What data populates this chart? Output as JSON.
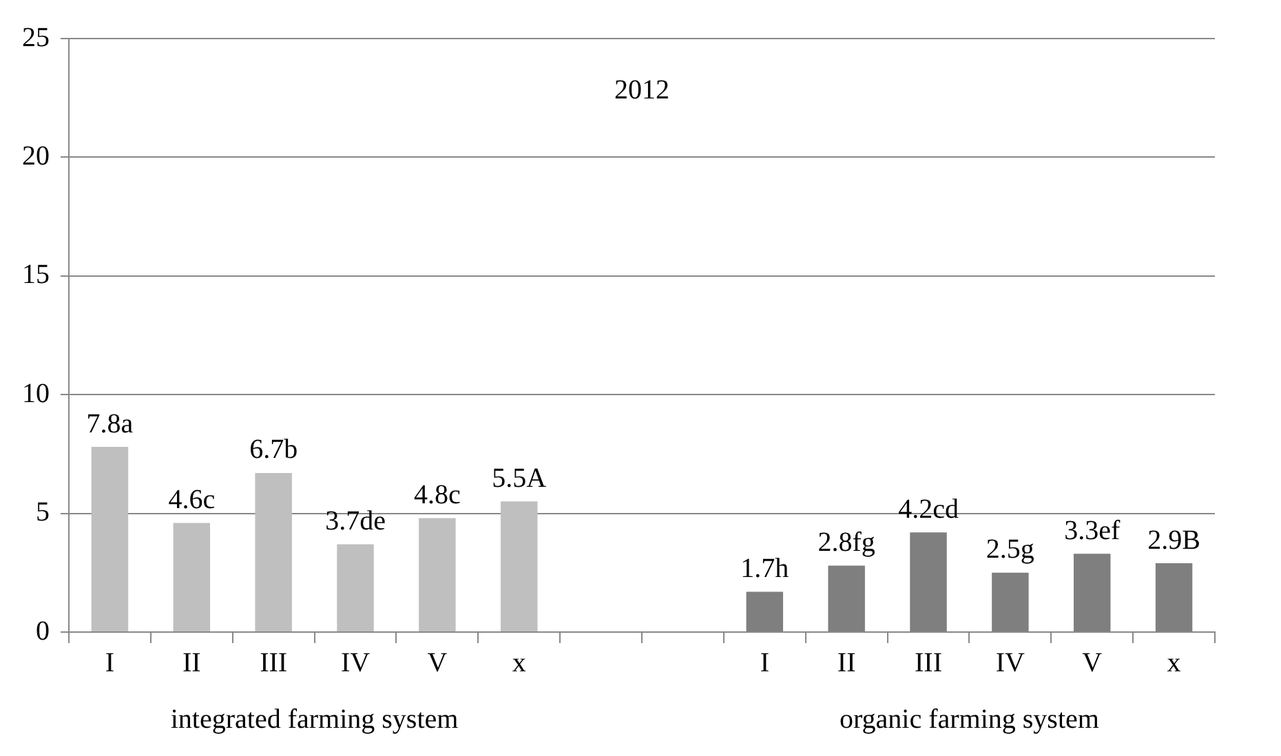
{
  "chart_data": {
    "type": "bar",
    "title": "2012",
    "categories": [
      "I",
      "II",
      "III",
      "IV",
      "V",
      "x",
      null,
      null,
      "I",
      "II",
      "III",
      "IV",
      "V",
      "x"
    ],
    "series": [
      {
        "name": "integrated farming system",
        "color": "#bfbfbf",
        "values": [
          7.8,
          4.6,
          6.7,
          3.7,
          4.8,
          5.5,
          null,
          null,
          null,
          null,
          null,
          null,
          null,
          null
        ],
        "value_labels": [
          "7.8a",
          "4.6c",
          "6.7b",
          "3.7de",
          "4.8c",
          "5.5A",
          null,
          null,
          null,
          null,
          null,
          null,
          null,
          null
        ]
      },
      {
        "name": "organic farming system",
        "color": "#7f7f7f",
        "values": [
          null,
          null,
          null,
          null,
          null,
          null,
          null,
          null,
          1.7,
          2.8,
          4.2,
          2.5,
          3.3,
          2.9
        ],
        "value_labels": [
          null,
          null,
          null,
          null,
          null,
          null,
          null,
          null,
          "1.7h",
          "2.8fg",
          "4.2cd",
          "2.5g",
          "3.3ef",
          "2.9B"
        ]
      }
    ],
    "ylim": [
      0,
      25
    ],
    "yticks": [
      0,
      5,
      10,
      15,
      20,
      25
    ],
    "grid": "y",
    "legend": false
  }
}
